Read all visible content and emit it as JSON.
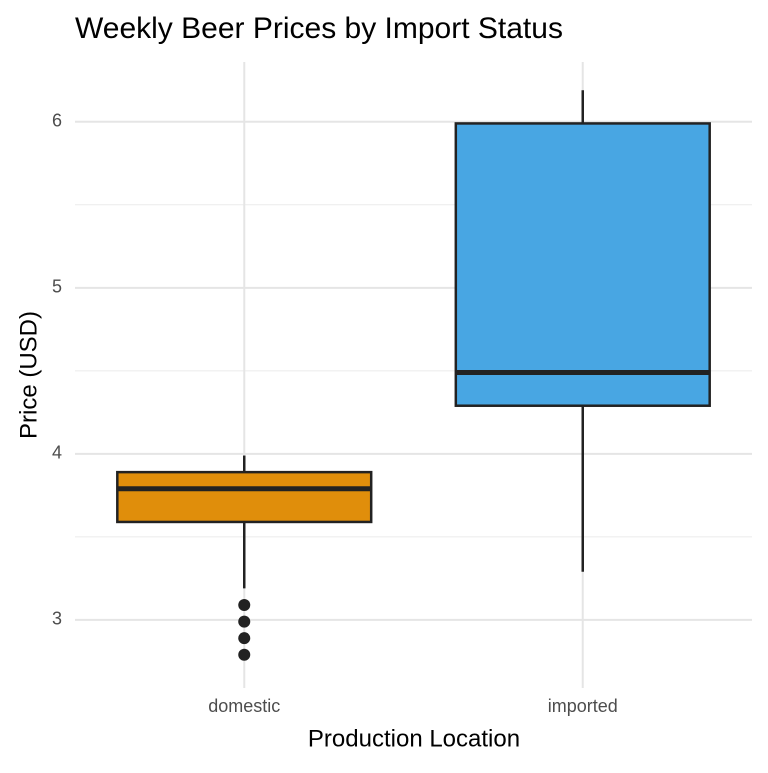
{
  "chart_data": {
    "type": "box",
    "title": "Weekly Beer Prices by Import Status",
    "x_label": "Production Location",
    "y_label": "Price (USD)",
    "categories": [
      "domestic",
      "imported"
    ],
    "boxes": [
      {
        "whisker_low": 3.19,
        "q1": 3.59,
        "median": 3.79,
        "q3": 3.89,
        "whisker_high": 3.99,
        "outliers": [
          3.09,
          2.99,
          2.89,
          2.79
        ],
        "color": "#e08e0b"
      },
      {
        "whisker_low": 3.29,
        "q1": 4.29,
        "median": 4.49,
        "q3": 5.99,
        "whisker_high": 6.19,
        "outliers": [],
        "color": "#48a6e3"
      }
    ],
    "ylim": [
      2.59,
      6.36
    ],
    "yticks": [
      3,
      4,
      5,
      6
    ],
    "minor_yticks": [
      3.5,
      4.5,
      5.5
    ],
    "grid": true
  }
}
